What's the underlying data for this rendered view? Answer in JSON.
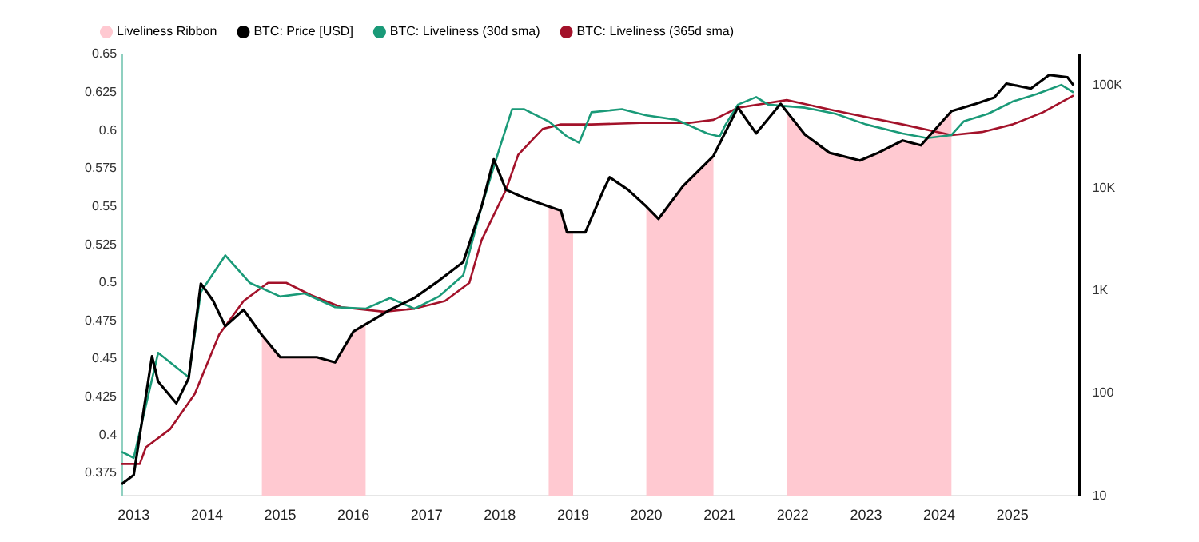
{
  "chart_data": {
    "type": "line",
    "legend": "top left",
    "xlim": [
      "2012-11",
      "2025-12"
    ],
    "xticks": [
      "2013",
      "2014",
      "2015",
      "2016",
      "2017",
      "2018",
      "2019",
      "2020",
      "2021",
      "2022",
      "2023",
      "2024",
      "2025"
    ],
    "ylim": [
      0.36,
      0.65
    ],
    "yticks": [
      0.375,
      0.4,
      0.425,
      0.45,
      0.475,
      0.5,
      0.525,
      0.55,
      0.575,
      0.6,
      0.625,
      0.65
    ],
    "log": "y2",
    "y2lim": [
      10,
      200000
    ],
    "y2ticks": [
      10,
      100,
      {
        "value": 1000,
        "label": "1K"
      },
      {
        "value": 10000,
        "label": "10K"
      },
      {
        "value": 100000,
        "label": "100K"
      }
    ],
    "grid": false,
    "marker": "none",
    "bands": [
      {
        "axis": "x",
        "from": "2014-10",
        "to": "2016-03",
        "label": "Liveliness Ribbon",
        "color": "#ffc9d1"
      },
      {
        "axis": "x",
        "from": "2018-09",
        "to": "2019-01",
        "color": "#ffc9d1"
      },
      {
        "axis": "x",
        "from": "2020-01",
        "to": "2020-12",
        "color": "#ffc9d1"
      },
      {
        "axis": "x",
        "from": "2021-12",
        "to": "2024-03",
        "color": "#ffc9d1"
      }
    ],
    "series": [
      {
        "name": "BTC: Price [USD]",
        "color": "#000000",
        "axis": "y2",
        "x": [
          "2012-11",
          "2013-01",
          "2013-04",
          "2013-05",
          "2013-08",
          "2013-10",
          "2013-12",
          "2014-02",
          "2014-04",
          "2014-07",
          "2014-10",
          "2015-01",
          "2015-07",
          "2015-10",
          "2016-01",
          "2016-07",
          "2016-11",
          "2017-03",
          "2017-07",
          "2017-10",
          "2017-12",
          "2018-02",
          "2018-05",
          "2018-09",
          "2018-11",
          "2018-12",
          "2019-03",
          "2019-06",
          "2019-07",
          "2019-10",
          "2020-01",
          "2020-03",
          "2020-07",
          "2020-12",
          "2021-04",
          "2021-07",
          "2021-11",
          "2022-03",
          "2022-07",
          "2022-12",
          "2023-03",
          "2023-07",
          "2023-10",
          "2024-03",
          "2024-07",
          "2024-10",
          "2024-12",
          "2025-04",
          "2025-07",
          "2025-10",
          "2025-11"
        ],
        "values": [
          13,
          16,
          230,
          130,
          80,
          140,
          1170,
          800,
          450,
          650,
          370,
          225,
          225,
          200,
          400,
          650,
          850,
          1250,
          1900,
          6600,
          19000,
          9600,
          8000,
          6600,
          6000,
          3700,
          3700,
          9600,
          12700,
          9600,
          6600,
          5000,
          10400,
          20500,
          61000,
          34000,
          66000,
          33000,
          22000,
          18500,
          22000,
          29000,
          26000,
          56000,
          66000,
          76000,
          104000,
          93000,
          126000,
          120000,
          100000
        ]
      },
      {
        "name": "BTC: Liveliness (30d sma)",
        "color": "#1a9a78",
        "x": [
          "2012-11",
          "2013-01",
          "2013-05",
          "2013-10",
          "2013-12",
          "2014-04",
          "2014-08",
          "2015-01",
          "2015-05",
          "2015-10",
          "2016-03",
          "2016-07",
          "2016-11",
          "2017-03",
          "2017-07",
          "2017-10",
          "2018-01",
          "2018-03",
          "2018-05",
          "2018-09",
          "2018-12",
          "2019-02",
          "2019-04",
          "2019-09",
          "2020-01",
          "2020-06",
          "2020-11",
          "2021-01",
          "2021-02",
          "2021-04",
          "2021-07",
          "2021-09",
          "2022-03",
          "2022-08",
          "2023-01",
          "2023-07",
          "2023-11",
          "2024-03",
          "2024-05",
          "2024-09",
          "2025-01",
          "2025-05",
          "2025-09",
          "2025-11"
        ],
        "values": [
          0.389,
          0.385,
          0.454,
          0.438,
          0.494,
          0.518,
          0.5,
          0.491,
          0.493,
          0.484,
          0.483,
          0.49,
          0.483,
          0.491,
          0.505,
          0.55,
          0.589,
          0.614,
          0.614,
          0.606,
          0.596,
          0.592,
          0.612,
          0.614,
          0.61,
          0.607,
          0.598,
          0.596,
          0.604,
          0.617,
          0.622,
          0.617,
          0.615,
          0.611,
          0.604,
          0.598,
          0.595,
          0.597,
          0.606,
          0.611,
          0.619,
          0.624,
          0.63,
          0.625
        ]
      },
      {
        "name": "BTC: Liveliness (365d sma)",
        "color": "#a3122a",
        "x": [
          "2012-11",
          "2013-02",
          "2013-03",
          "2013-07",
          "2013-11",
          "2014-03",
          "2014-07",
          "2014-11",
          "2015-02",
          "2015-06",
          "2015-11",
          "2016-06",
          "2016-11",
          "2017-04",
          "2017-08",
          "2017-10",
          "2018-02",
          "2018-04",
          "2018-08",
          "2018-11",
          "2019-04",
          "2019-12",
          "2020-08",
          "2020-12",
          "2021-04",
          "2021-12",
          "2022-08",
          "2023-07",
          "2024-03",
          "2024-08",
          "2025-01",
          "2025-06",
          "2025-11"
        ],
        "values": [
          0.381,
          0.381,
          0.392,
          0.404,
          0.427,
          0.466,
          0.488,
          0.5,
          0.5,
          0.492,
          0.484,
          0.481,
          0.483,
          0.488,
          0.5,
          0.528,
          0.561,
          0.584,
          0.601,
          0.604,
          0.604,
          0.605,
          0.605,
          0.607,
          0.615,
          0.62,
          0.613,
          0.604,
          0.597,
          0.599,
          0.604,
          0.612,
          0.623
        ]
      }
    ]
  }
}
